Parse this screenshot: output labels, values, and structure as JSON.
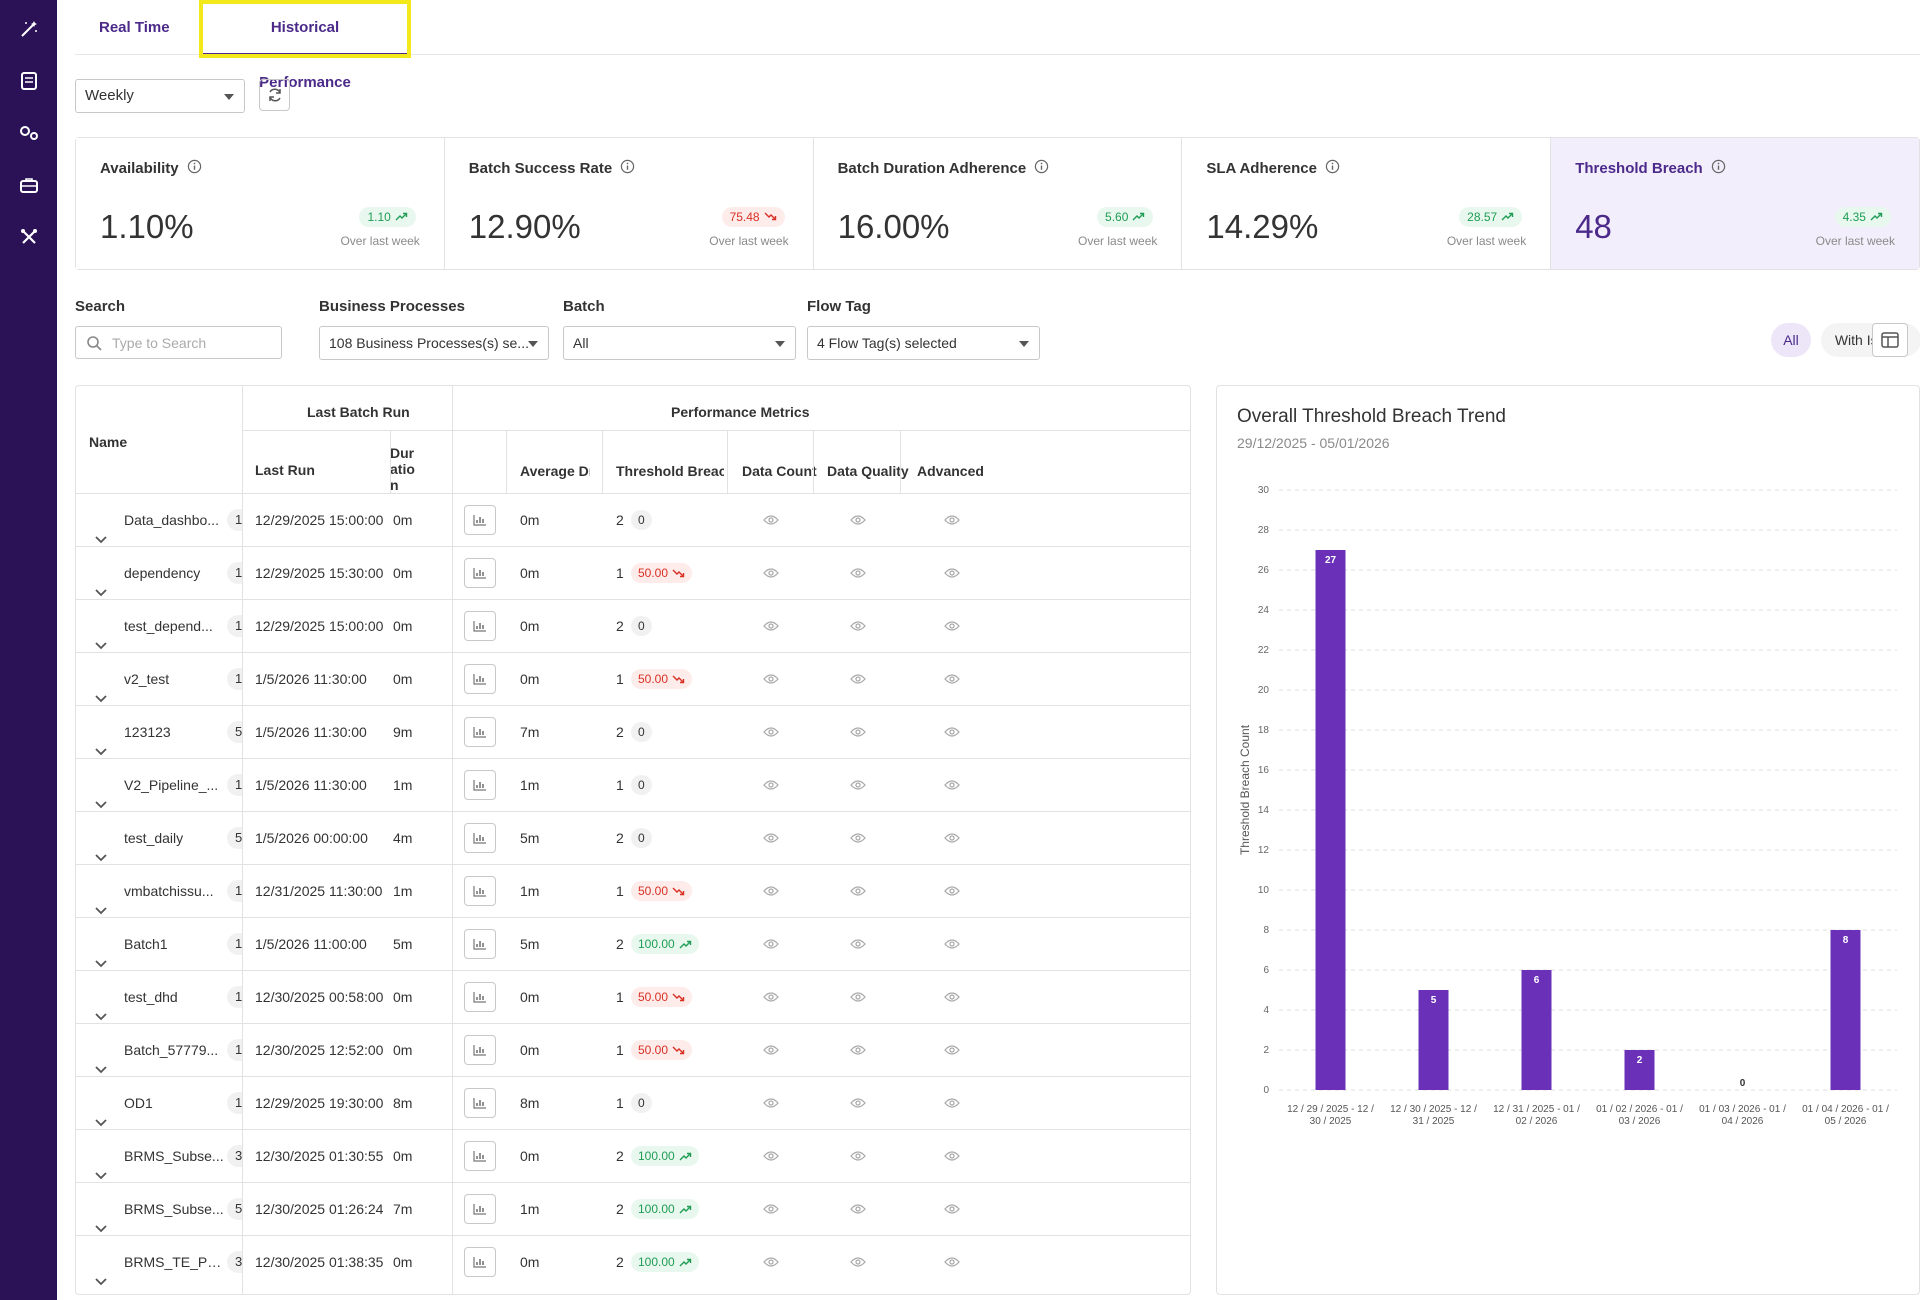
{
  "tabs": {
    "realtime": "Real Time",
    "historical": "Historical Performance"
  },
  "controls": {
    "period": "Weekly"
  },
  "kpis": [
    {
      "title": "Availability",
      "value": "1.10%",
      "delta": "1.10",
      "trend": "up",
      "sub": "Over last week"
    },
    {
      "title": "Batch Success Rate",
      "value": "12.90%",
      "delta": "75.48",
      "trend": "down",
      "sub": "Over last week"
    },
    {
      "title": "Batch Duration Adherence",
      "value": "16.00%",
      "delta": "5.60",
      "trend": "up",
      "sub": "Over last week"
    },
    {
      "title": "SLA Adherence",
      "value": "14.29%",
      "delta": "28.57",
      "trend": "up",
      "sub": "Over last week"
    },
    {
      "title": "Threshold Breach",
      "value": "48",
      "delta": "4.35",
      "trend": "up",
      "sub": "Over last week"
    }
  ],
  "filters": {
    "search_label": "Search",
    "search_placeholder": "Type to Search",
    "bp_label": "Business Processes",
    "bp_value": "108 Business Processes(s) se...",
    "batch_label": "Batch",
    "batch_value": "All",
    "flowtag_label": "Flow Tag",
    "flowtag_value": "4 Flow Tag(s) selected",
    "all_label": "All",
    "issues_label": "With Issues"
  },
  "table": {
    "headers": {
      "name": "Name",
      "last_batch_run": "Last Batch Run",
      "performance_metrics": "Performance Metrics",
      "last_run": "Last Run",
      "duration": "Dur atio n",
      "average": "Average Dı",
      "threshold": "Threshold Breac",
      "data_count": "Data Count",
      "data_quality": "Data Quality",
      "advanced": "Advanced DC"
    },
    "rows": [
      {
        "name": "Data_dashbo...",
        "count": "1",
        "last_run": "12/29/2025 15:00:00",
        "duration": "0m",
        "average": "0m",
        "tb": "2",
        "badge": "0",
        "badge_type": "zero"
      },
      {
        "name": "dependency",
        "count": "1",
        "last_run": "12/29/2025 15:30:00",
        "duration": "0m",
        "average": "0m",
        "tb": "1",
        "badge": "50.00",
        "badge_type": "down"
      },
      {
        "name": "test_depend...",
        "count": "1",
        "last_run": "12/29/2025 15:00:00",
        "duration": "0m",
        "average": "0m",
        "tb": "2",
        "badge": "0",
        "badge_type": "zero"
      },
      {
        "name": "v2_test",
        "count": "1",
        "last_run": "1/5/2026 11:30:00",
        "duration": "0m",
        "average": "0m",
        "tb": "1",
        "badge": "50.00",
        "badge_type": "down"
      },
      {
        "name": "123123",
        "count": "5",
        "last_run": "1/5/2026 11:30:00",
        "duration": "9m",
        "average": "7m",
        "tb": "2",
        "badge": "0",
        "badge_type": "zero"
      },
      {
        "name": "V2_Pipeline_...",
        "count": "1",
        "last_run": "1/5/2026 11:30:00",
        "duration": "1m",
        "average": "1m",
        "tb": "1",
        "badge": "0",
        "badge_type": "zero"
      },
      {
        "name": "test_daily",
        "count": "5",
        "last_run": "1/5/2026 00:00:00",
        "duration": "4m",
        "average": "5m",
        "tb": "2",
        "badge": "0",
        "badge_type": "zero"
      },
      {
        "name": "vmbatchissu...",
        "count": "1",
        "last_run": "12/31/2025 11:30:00",
        "duration": "1m",
        "average": "1m",
        "tb": "1",
        "badge": "50.00",
        "badge_type": "down"
      },
      {
        "name": "Batch1",
        "count": "1",
        "last_run": "1/5/2026 11:00:00",
        "duration": "5m",
        "average": "5m",
        "tb": "2",
        "badge": "100.00",
        "badge_type": "up"
      },
      {
        "name": "test_dhd",
        "count": "1",
        "last_run": "12/30/2025 00:58:00",
        "duration": "0m",
        "average": "0m",
        "tb": "1",
        "badge": "50.00",
        "badge_type": "down"
      },
      {
        "name": "Batch_57779...",
        "count": "1",
        "last_run": "12/30/2025 12:52:00",
        "duration": "0m",
        "average": "0m",
        "tb": "1",
        "badge": "50.00",
        "badge_type": "down"
      },
      {
        "name": "OD1",
        "count": "1",
        "last_run": "12/29/2025 19:30:00",
        "duration": "8m",
        "average": "8m",
        "tb": "1",
        "badge": "0",
        "badge_type": "zero"
      },
      {
        "name": "BRMS_Subse...",
        "count": "3",
        "last_run": "12/30/2025 01:30:55",
        "duration": "0m",
        "average": "0m",
        "tb": "2",
        "badge": "100.00",
        "badge_type": "up"
      },
      {
        "name": "BRMS_Subse...",
        "count": "5",
        "last_run": "12/30/2025 01:26:24",
        "duration": "7m",
        "average": "1m",
        "tb": "2",
        "badge": "100.00",
        "badge_type": "up"
      },
      {
        "name": "BRMS_TE_Pu...",
        "count": "3",
        "last_run": "12/30/2025 01:38:35",
        "duration": "0m",
        "average": "0m",
        "tb": "2",
        "badge": "100.00",
        "badge_type": "up"
      }
    ]
  },
  "colors": {
    "brand": "#4b2a8a",
    "bar": "#6a31b8",
    "sidebar": "#2b1257",
    "up": "#1f9d55",
    "down": "#d93025"
  },
  "chart_data": {
    "type": "bar",
    "title": "Overall Threshold Breach Trend",
    "subtitle": "29/12/2025 - 05/01/2026",
    "ylabel": "Threshold Breach Count",
    "xlabel": "",
    "ylim": [
      0,
      30
    ],
    "yticks": [
      0,
      2,
      4,
      6,
      8,
      10,
      12,
      14,
      16,
      18,
      20,
      22,
      24,
      26,
      28,
      30
    ],
    "grid": true,
    "categories": [
      [
        "12 / 29 / 2025 - 12 /",
        "30 / 2025"
      ],
      [
        "12 / 30 / 2025 - 12 /",
        "31 / 2025"
      ],
      [
        "12 / 31 / 2025 - 01 /",
        "02 / 2026"
      ],
      [
        "01 / 02 / 2026 - 01 /",
        "03 / 2026"
      ],
      [
        "01 / 03 / 2026 - 01 /",
        "04 / 2026"
      ],
      [
        "01 / 04 / 2026 - 01 /",
        "05 / 2026"
      ]
    ],
    "values": [
      27,
      5,
      6,
      2,
      0,
      8
    ]
  }
}
